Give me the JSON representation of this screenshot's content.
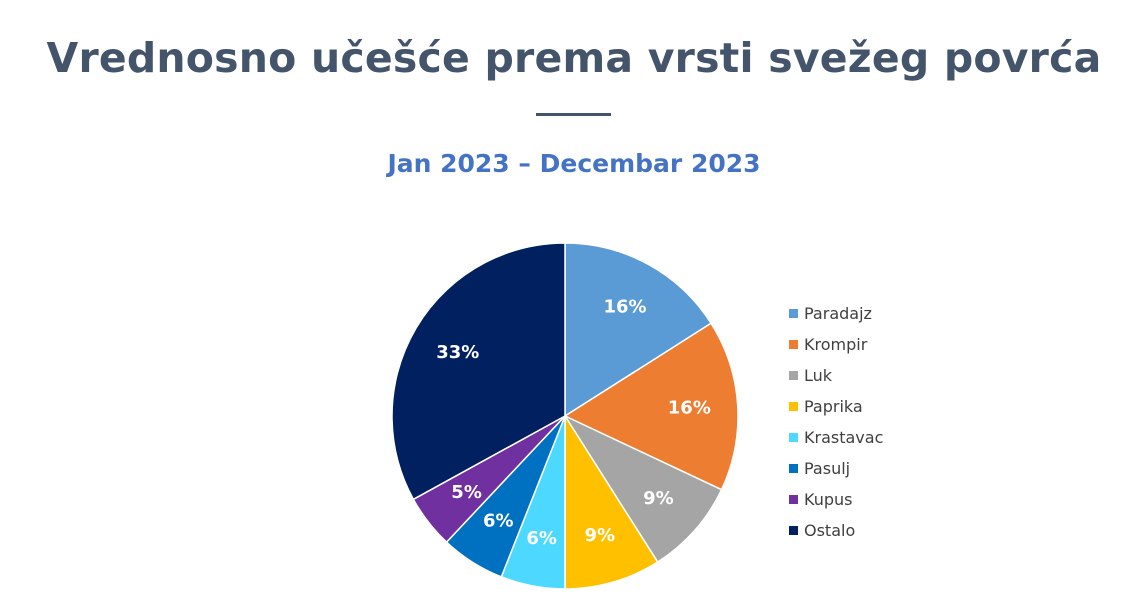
{
  "header": {
    "title": "Vrednosno učešće prema vrsti svežeg povrća",
    "subtitle": "Jan 2023 – Decembar 2023"
  },
  "chart_data": {
    "type": "pie",
    "title": "Vrednosno učešće prema vrsti svežeg povrća",
    "subtitle": "Jan 2023 – Decembar 2023",
    "legend_position": "right",
    "categories": [
      "Paradajz",
      "Krompir",
      "Luk",
      "Paprika",
      "Krastavac",
      "Pasulj",
      "Kupus",
      "Ostalo"
    ],
    "values": [
      16,
      16,
      9,
      9,
      6,
      6,
      5,
      33
    ],
    "labels": [
      "16%",
      "16%",
      "9%",
      "9%",
      "6%",
      "6%",
      "5%",
      "33%"
    ],
    "colors": [
      "#5b9bd5",
      "#ed7d31",
      "#a5a5a5",
      "#ffc000",
      "#4dd9ff",
      "#0070c0",
      "#7030a0",
      "#002060"
    ],
    "unit": "%"
  }
}
